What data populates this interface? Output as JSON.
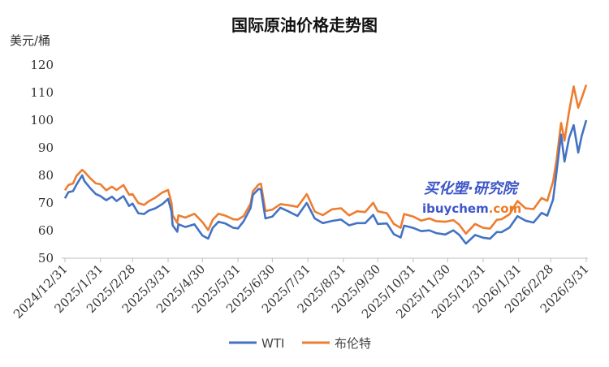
{
  "chart_data": {
    "type": "line",
    "title": "国际原油价格走势图",
    "ylabel": "美元/桶",
    "xlabel": "",
    "ylim": [
      50,
      120
    ],
    "yticks": [
      50,
      60,
      70,
      80,
      90,
      100,
      110,
      120
    ],
    "x_start": "2024-12-31",
    "x_end": "2026-03-31",
    "xticks": [
      "2024/12/31",
      "2025/1/31",
      "2025/2/28",
      "2025/3/31",
      "2025/4/30",
      "2025/5/31",
      "2025/6/30",
      "2025/7/31",
      "2025/8/31",
      "2025/9/30",
      "2025/10/31",
      "2025/11/30",
      "2025/12/31",
      "2026/1/31",
      "2026/2/28",
      "2026/3/31"
    ],
    "grid": false,
    "legend_position": "bottom",
    "series": [
      {
        "name": "WTI",
        "color": "#4472c4",
        "points": [
          [
            "2024-12-31",
            71.7
          ],
          [
            "2025-01-03",
            73.9
          ],
          [
            "2025-01-07",
            74.3
          ],
          [
            "2025-01-10",
            76.6
          ],
          [
            "2025-01-15",
            80.0
          ],
          [
            "2025-01-17",
            77.9
          ],
          [
            "2025-01-22",
            75.4
          ],
          [
            "2025-01-27",
            73.2
          ],
          [
            "2025-01-31",
            72.5
          ],
          [
            "2025-02-05",
            71.0
          ],
          [
            "2025-02-10",
            72.3
          ],
          [
            "2025-02-14",
            70.7
          ],
          [
            "2025-02-20",
            72.5
          ],
          [
            "2025-02-25",
            68.9
          ],
          [
            "2025-02-28",
            69.8
          ],
          [
            "2025-03-05",
            66.3
          ],
          [
            "2025-03-10",
            66.0
          ],
          [
            "2025-03-14",
            67.2
          ],
          [
            "2025-03-20",
            68.1
          ],
          [
            "2025-03-26",
            69.6
          ],
          [
            "2025-03-31",
            71.5
          ],
          [
            "2025-04-03",
            66.9
          ],
          [
            "2025-04-04",
            61.9
          ],
          [
            "2025-04-08",
            59.6
          ],
          [
            "2025-04-09",
            62.3
          ],
          [
            "2025-04-15",
            61.3
          ],
          [
            "2025-04-23",
            62.3
          ],
          [
            "2025-04-30",
            58.2
          ],
          [
            "2025-05-05",
            57.1
          ],
          [
            "2025-05-09",
            61.0
          ],
          [
            "2025-05-14",
            63.2
          ],
          [
            "2025-05-20",
            62.6
          ],
          [
            "2025-05-27",
            61.0
          ],
          [
            "2025-05-31",
            60.8
          ],
          [
            "2025-06-05",
            63.4
          ],
          [
            "2025-06-11",
            68.2
          ],
          [
            "2025-06-13",
            72.9
          ],
          [
            "2025-06-18",
            75.1
          ],
          [
            "2025-06-20",
            74.9
          ],
          [
            "2025-06-24",
            64.4
          ],
          [
            "2025-06-30",
            65.1
          ],
          [
            "2025-07-07",
            68.3
          ],
          [
            "2025-07-14",
            66.98
          ],
          [
            "2025-07-22",
            65.3
          ],
          [
            "2025-07-30",
            70.0
          ],
          [
            "2025-07-31",
            69.3
          ],
          [
            "2025-08-06",
            64.4
          ],
          [
            "2025-08-13",
            62.7
          ],
          [
            "2025-08-21",
            63.5
          ],
          [
            "2025-08-29",
            64.0
          ],
          [
            "2025-09-05",
            61.9
          ],
          [
            "2025-09-12",
            62.7
          ],
          [
            "2025-09-19",
            62.7
          ],
          [
            "2025-09-26",
            65.7
          ],
          [
            "2025-09-30",
            62.4
          ],
          [
            "2025-10-08",
            62.6
          ],
          [
            "2025-10-14",
            58.7
          ],
          [
            "2025-10-20",
            57.5
          ],
          [
            "2025-10-23",
            61.8
          ],
          [
            "2025-10-31",
            60.98
          ],
          [
            "2025-11-07",
            59.8
          ],
          [
            "2025-11-14",
            60.1
          ],
          [
            "2025-11-20",
            59.1
          ],
          [
            "2025-11-28",
            58.6
          ],
          [
            "2025-12-05",
            60.1
          ],
          [
            "2025-12-10",
            58.5
          ],
          [
            "2025-12-16",
            55.3
          ],
          [
            "2025-12-24",
            58.4
          ],
          [
            "2025-12-31",
            57.4
          ],
          [
            "2026-01-06",
            57.1
          ],
          [
            "2026-01-12",
            59.5
          ],
          [
            "2026-01-16",
            59.4
          ],
          [
            "2026-01-23",
            61.1
          ],
          [
            "2026-01-30",
            65.2
          ],
          [
            "2026-02-06",
            63.6
          ],
          [
            "2026-02-13",
            62.9
          ],
          [
            "2026-02-20",
            66.4
          ],
          [
            "2026-02-25",
            65.4
          ],
          [
            "2026-03-02",
            71.2
          ],
          [
            "2026-03-05",
            81.0
          ],
          [
            "2026-03-09",
            94.8
          ],
          [
            "2026-03-12",
            85.0
          ],
          [
            "2026-03-16",
            93.5
          ],
          [
            "2026-03-20",
            98.2
          ],
          [
            "2026-03-24",
            88.3
          ],
          [
            "2026-03-27",
            94.3
          ],
          [
            "2026-03-31",
            100.0
          ]
        ]
      },
      {
        "name": "布伦特",
        "color": "#ed7d31",
        "points": [
          [
            "2024-12-31",
            74.6
          ],
          [
            "2025-01-03",
            76.5
          ],
          [
            "2025-01-07",
            77.05
          ],
          [
            "2025-01-10",
            79.8
          ],
          [
            "2025-01-15",
            82.0
          ],
          [
            "2025-01-17",
            81.3
          ],
          [
            "2025-01-22",
            79.0
          ],
          [
            "2025-01-27",
            77.1
          ],
          [
            "2025-01-31",
            76.8
          ],
          [
            "2025-02-05",
            74.6
          ],
          [
            "2025-02-10",
            75.9
          ],
          [
            "2025-02-14",
            74.7
          ],
          [
            "2025-02-20",
            76.5
          ],
          [
            "2025-02-25",
            73.0
          ],
          [
            "2025-02-28",
            73.2
          ],
          [
            "2025-03-05",
            70.0
          ],
          [
            "2025-03-10",
            69.3
          ],
          [
            "2025-03-14",
            70.6
          ],
          [
            "2025-03-20",
            72.0
          ],
          [
            "2025-03-26",
            73.8
          ],
          [
            "2025-03-31",
            74.7
          ],
          [
            "2025-04-03",
            70.1
          ],
          [
            "2025-04-04",
            65.6
          ],
          [
            "2025-04-08",
            62.8
          ],
          [
            "2025-04-09",
            65.5
          ],
          [
            "2025-04-15",
            64.7
          ],
          [
            "2025-04-23",
            66.1
          ],
          [
            "2025-04-30",
            63.1
          ],
          [
            "2025-05-05",
            60.2
          ],
          [
            "2025-05-09",
            63.9
          ],
          [
            "2025-05-14",
            66.1
          ],
          [
            "2025-05-20",
            65.4
          ],
          [
            "2025-05-27",
            64.1
          ],
          [
            "2025-05-31",
            64.0
          ],
          [
            "2025-06-05",
            65.3
          ],
          [
            "2025-06-11",
            69.8
          ],
          [
            "2025-06-13",
            74.2
          ],
          [
            "2025-06-18",
            76.7
          ],
          [
            "2025-06-20",
            77.0
          ],
          [
            "2025-06-24",
            67.1
          ],
          [
            "2025-06-30",
            67.6
          ],
          [
            "2025-07-07",
            69.6
          ],
          [
            "2025-07-14",
            69.2
          ],
          [
            "2025-07-22",
            68.6
          ],
          [
            "2025-07-30",
            73.2
          ],
          [
            "2025-07-31",
            72.5
          ],
          [
            "2025-08-06",
            66.9
          ],
          [
            "2025-08-13",
            65.6
          ],
          [
            "2025-08-21",
            67.7
          ],
          [
            "2025-08-29",
            68.1
          ],
          [
            "2025-09-05",
            65.5
          ],
          [
            "2025-09-12",
            66.99
          ],
          [
            "2025-09-19",
            66.7
          ],
          [
            "2025-09-26",
            70.1
          ],
          [
            "2025-09-30",
            67.0
          ],
          [
            "2025-10-08",
            66.3
          ],
          [
            "2025-10-14",
            62.4
          ],
          [
            "2025-10-20",
            61.0
          ],
          [
            "2025-10-23",
            65.99
          ],
          [
            "2025-10-31",
            65.1
          ],
          [
            "2025-11-07",
            63.6
          ],
          [
            "2025-11-14",
            64.4
          ],
          [
            "2025-11-20",
            63.4
          ],
          [
            "2025-11-28",
            63.2
          ],
          [
            "2025-12-05",
            63.8
          ],
          [
            "2025-12-10",
            62.2
          ],
          [
            "2025-12-16",
            58.9
          ],
          [
            "2025-12-24",
            62.4
          ],
          [
            "2025-12-31",
            61.0
          ],
          [
            "2026-01-06",
            60.7
          ],
          [
            "2026-01-12",
            63.9
          ],
          [
            "2026-01-16",
            64.1
          ],
          [
            "2026-01-23",
            65.9
          ],
          [
            "2026-01-30",
            70.7
          ],
          [
            "2026-02-06",
            68.1
          ],
          [
            "2026-02-13",
            67.8
          ],
          [
            "2026-02-20",
            71.8
          ],
          [
            "2026-02-25",
            70.8
          ],
          [
            "2026-03-02",
            77.7
          ],
          [
            "2026-03-05",
            85.4
          ],
          [
            "2026-03-09",
            99.0
          ],
          [
            "2026-03-12",
            92.6
          ],
          [
            "2026-03-16",
            103.1
          ],
          [
            "2026-03-20",
            112.2
          ],
          [
            "2026-03-24",
            104.5
          ],
          [
            "2026-03-27",
            108.0
          ],
          [
            "2026-03-31",
            112.8
          ]
        ]
      }
    ]
  },
  "watermark": {
    "brand_cn": "买化塑·研究院",
    "site_main": "ibuychem",
    "site_suffix": ".com"
  }
}
